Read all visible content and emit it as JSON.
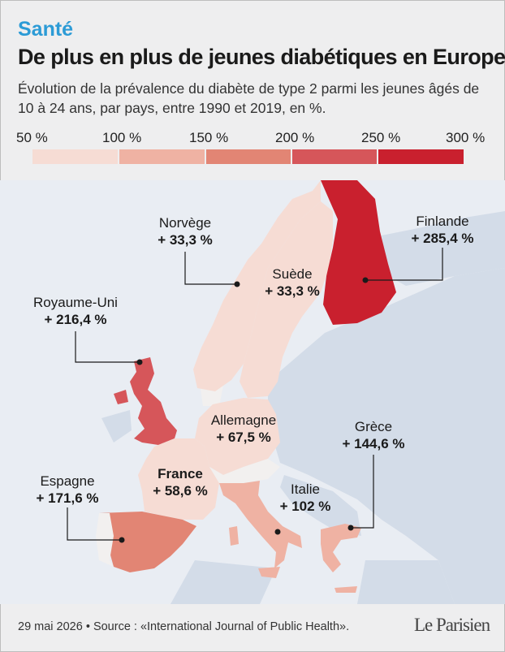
{
  "header": {
    "section": "Santé",
    "title": "De plus en plus de jeunes diabétiques en Europe",
    "subtitle": "Évolution de la prévalence du diabète de type 2 parmi les jeunes âgés de 10 à 24 ans, par pays, entre 1990 et 2019, en %."
  },
  "legend": {
    "labels": [
      "50 %",
      "100 %",
      "150 %",
      "200 %",
      "250 %",
      "300 %"
    ],
    "colors": [
      "#f6dcd4",
      "#efb2a3",
      "#e28574",
      "#d6565a",
      "#c9202e"
    ]
  },
  "colors": {
    "land": "#d3dce8",
    "sea": "#e9edf3",
    "neutral": "#f2f0ef"
  },
  "countries": {
    "norvege": {
      "name": "Norvège",
      "value": "+ 33,3 %",
      "color": "#f6dcd4"
    },
    "suede": {
      "name": "Suède",
      "value": "+ 33,3 %",
      "color": "#f6dcd4"
    },
    "finlande": {
      "name": "Finlande",
      "value": "+ 285,4 %",
      "color": "#c9202e"
    },
    "royaume_uni": {
      "name": "Royaume-Uni",
      "value": "+ 216,4 %",
      "color": "#d6565a"
    },
    "allemagne": {
      "name": "Allemagne",
      "value": "+ 67,5 %",
      "color": "#f6dcd4"
    },
    "france": {
      "name": "France",
      "value": "+ 58,6 %",
      "color": "#f6dcd4"
    },
    "espagne": {
      "name": "Espagne",
      "value": "+ 171,6 %",
      "color": "#e28574"
    },
    "italie": {
      "name": "Italie",
      "value": "+ 102 %",
      "color": "#efb2a3"
    },
    "grece": {
      "name": "Grèce",
      "value": "+ 144,6 %",
      "color": "#efb2a3"
    }
  },
  "footer": {
    "source": "29 mai 2026 • Source : «International Journal of Public Health».",
    "logo": "Le Parisien"
  }
}
